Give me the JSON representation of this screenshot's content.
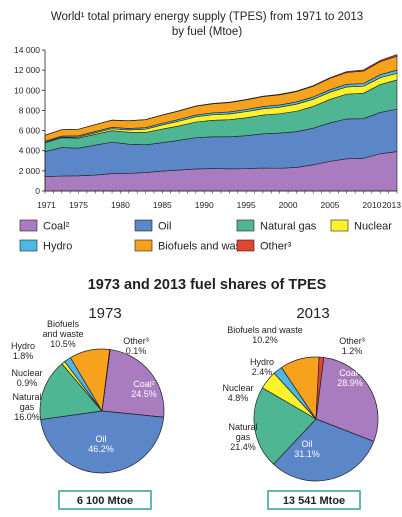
{
  "chart_data": [
    {
      "type": "area",
      "title": "World¹ total primary energy supply (TPES) from 1971 to 2013",
      "subtitle": "by fuel (Mtoe)",
      "xlabel": "",
      "ylabel": "",
      "xlim": [
        1971,
        2013
      ],
      "ylim": [
        0,
        14000
      ],
      "grid": false,
      "stacked": true,
      "x_tick_labels": [
        "1971",
        "1975",
        "1980",
        "1985",
        "1990",
        "1995",
        "2000",
        "2005",
        "2010",
        "2013"
      ],
      "y_tick_labels": [
        "0",
        "2 000",
        "4 000",
        "6 000",
        "8 000",
        "10 000",
        "12 000",
        "14 000"
      ],
      "x": [
        1971,
        1973,
        1975,
        1977,
        1979,
        1981,
        1983,
        1985,
        1987,
        1989,
        1991,
        1993,
        1995,
        1997,
        1999,
        2001,
        2003,
        2005,
        2007,
        2009,
        2011,
        2013
      ],
      "series": [
        {
          "name": "Coal²",
          "values": [
            1420,
            1490,
            1510,
            1580,
            1730,
            1750,
            1830,
            1980,
            2080,
            2190,
            2230,
            2200,
            2220,
            2280,
            2260,
            2340,
            2600,
            2940,
            3200,
            3250,
            3700,
            3920
          ]
        },
        {
          "name": "Oil",
          "values": [
            2480,
            2820,
            2740,
            2980,
            3110,
            2900,
            2760,
            2820,
            2950,
            3110,
            3150,
            3180,
            3270,
            3400,
            3490,
            3550,
            3640,
            3820,
            3960,
            3930,
            4100,
            4210
          ]
        },
        {
          "name": "Natural gas",
          "values": [
            900,
            980,
            1010,
            1070,
            1150,
            1180,
            1220,
            1350,
            1430,
            1550,
            1640,
            1700,
            1780,
            1860,
            1920,
            2030,
            2160,
            2330,
            2460,
            2520,
            2770,
            2900
          ]
        },
        {
          "name": "Nuclear",
          "values": [
            30,
            55,
            100,
            150,
            190,
            230,
            320,
            410,
            480,
            510,
            550,
            570,
            610,
            620,
            650,
            700,
            700,
            720,
            710,
            700,
            680,
            650
          ]
        },
        {
          "name": "Hydro",
          "values": [
            105,
            110,
            120,
            130,
            140,
            148,
            158,
            166,
            172,
            180,
            188,
            198,
            212,
            220,
            223,
            222,
            230,
            250,
            260,
            275,
            300,
            325
          ]
        },
        {
          "name": "Biofuels and waste",
          "values": [
            610,
            630,
            650,
            680,
            710,
            760,
            790,
            810,
            840,
            880,
            900,
            930,
            960,
            990,
            1010,
            1030,
            1070,
            1120,
            1180,
            1230,
            1290,
            1380
          ]
        },
        {
          "name": "Other³",
          "values": [
            5,
            6,
            8,
            10,
            12,
            15,
            18,
            22,
            25,
            30,
            35,
            38,
            42,
            45,
            50,
            55,
            60,
            80,
            95,
            115,
            135,
            160
          ]
        }
      ],
      "colors": [
        "#a97bbf",
        "#5b86c7",
        "#4fb694",
        "#fff12a",
        "#4db8e8",
        "#f6a21d",
        "#e2452f"
      ],
      "legend": {
        "placement": "bottom",
        "items": [
          {
            "label": "Coal²",
            "color": "#a97bbf"
          },
          {
            "label": "Oil",
            "color": "#5b86c7"
          },
          {
            "label": "Natural gas",
            "color": "#4fb694"
          },
          {
            "label": "Nuclear",
            "color": "#fff12a"
          },
          {
            "label": "Hydro",
            "color": "#4db8e8"
          },
          {
            "label": "Biofuels and waste",
            "color": "#f6a21d"
          },
          {
            "label": "Other³",
            "color": "#e2452f"
          }
        ]
      }
    },
    {
      "type": "pie",
      "title": "1973",
      "total_label": "6 100 Mtoe",
      "slices": [
        {
          "name": "Coal²",
          "value": 24.5,
          "color": "#a97bbf",
          "label_lines": [
            "Coal²",
            "24.5%"
          ]
        },
        {
          "name": "Oil",
          "value": 46.2,
          "color": "#5b86c7",
          "label_lines": [
            "Oil",
            "46.2%"
          ]
        },
        {
          "name": "Natural gas",
          "value": 16.0,
          "color": "#4fb694",
          "label_lines": [
            "Natural",
            "gas",
            "16.0%"
          ]
        },
        {
          "name": "Nuclear",
          "value": 0.9,
          "color": "#fff12a",
          "label_lines": [
            "Nuclear",
            "0.9%"
          ]
        },
        {
          "name": "Hydro",
          "value": 1.8,
          "color": "#4db8e8",
          "label_lines": [
            "Hydro",
            "1.8%"
          ]
        },
        {
          "name": "Biofuels and waste",
          "value": 10.5,
          "color": "#f6a21d",
          "label_lines": [
            "Biofuels",
            "and waste",
            "10.5%"
          ]
        },
        {
          "name": "Other³",
          "value": 0.1,
          "color": "#e2452f",
          "label_lines": [
            "Other³",
            "0.1%"
          ]
        }
      ]
    },
    {
      "type": "pie",
      "title": "2013",
      "total_label": "13 541 Mtoe",
      "slices": [
        {
          "name": "Coal²",
          "value": 28.9,
          "color": "#a97bbf",
          "label_lines": [
            "Coal²",
            "28.9%"
          ]
        },
        {
          "name": "Oil",
          "value": 31.1,
          "color": "#5b86c7",
          "label_lines": [
            "Oil",
            "31.1%"
          ]
        },
        {
          "name": "Natural gas",
          "value": 21.4,
          "color": "#4fb694",
          "label_lines": [
            "Natural",
            "gas",
            "21.4%"
          ]
        },
        {
          "name": "Nuclear",
          "value": 4.8,
          "color": "#fff12a",
          "label_lines": [
            "Nuclear",
            "4.8%"
          ]
        },
        {
          "name": "Hydro",
          "value": 2.4,
          "color": "#4db8e8",
          "label_lines": [
            "Hydro",
            "2.4%"
          ]
        },
        {
          "name": "Biofuels and waste",
          "value": 10.2,
          "color": "#f6a21d",
          "label_lines": [
            "Biofuels and waste",
            "10.2%"
          ]
        },
        {
          "name": "Other³",
          "value": 1.2,
          "color": "#e2452f",
          "label_lines": [
            "Other³",
            "1.2%"
          ]
        }
      ]
    }
  ],
  "section_heading": "1973 and 2013 fuel shares of TPES"
}
